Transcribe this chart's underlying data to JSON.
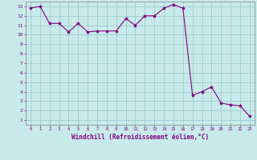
{
  "x": [
    0,
    1,
    2,
    3,
    4,
    5,
    6,
    7,
    8,
    9,
    10,
    11,
    12,
    13,
    14,
    15,
    16,
    17,
    18,
    19,
    20,
    21,
    22,
    23
  ],
  "y": [
    12.8,
    13.0,
    11.2,
    11.2,
    10.3,
    11.2,
    10.3,
    10.4,
    10.4,
    10.4,
    11.7,
    11.0,
    12.0,
    12.0,
    12.8,
    13.2,
    12.8,
    3.6,
    4.0,
    4.5,
    2.8,
    2.6,
    2.5,
    1.4
  ],
  "line_color": "#800080",
  "marker": "*",
  "marker_size": 3,
  "bg_color": "#c8eaea",
  "grid_color": "#a0cccc",
  "xlabel": "Windchill (Refroidissement éolien,°C)",
  "xlabel_color": "#800080",
  "tick_color": "#800080",
  "xlim": [
    -0.5,
    23.5
  ],
  "ylim": [
    0.5,
    13.5
  ],
  "xticks": [
    0,
    1,
    2,
    3,
    4,
    5,
    6,
    7,
    8,
    9,
    10,
    11,
    12,
    13,
    14,
    15,
    16,
    17,
    18,
    19,
    20,
    21,
    22,
    23
  ],
  "yticks": [
    1,
    2,
    3,
    4,
    5,
    6,
    7,
    8,
    9,
    10,
    11,
    12,
    13
  ]
}
